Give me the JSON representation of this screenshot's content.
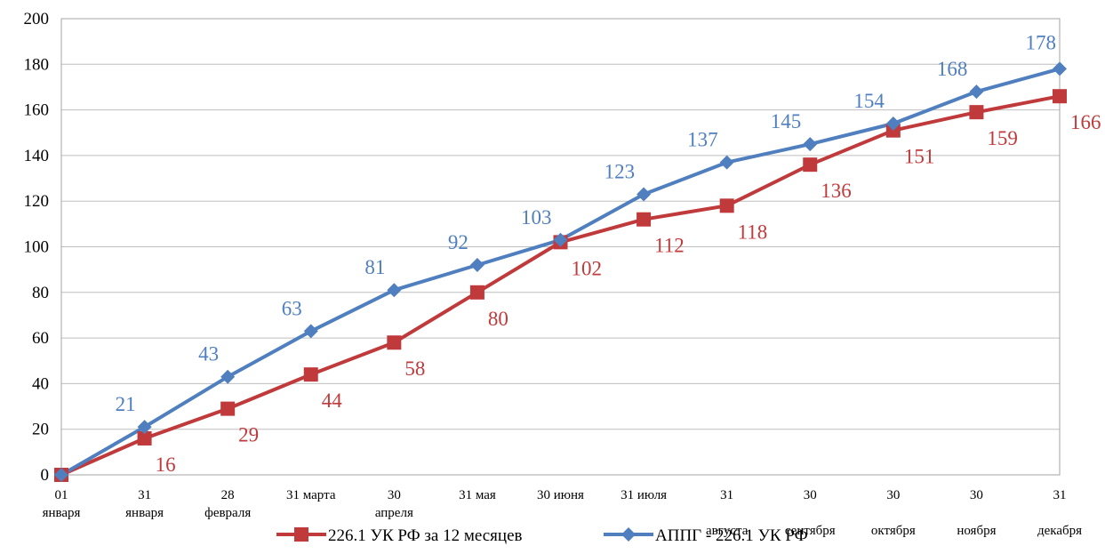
{
  "chart_data": {
    "type": "line",
    "categories": [
      [
        "01",
        "января"
      ],
      [
        "31",
        "января"
      ],
      [
        "28",
        "февраля"
      ],
      [
        "31 марта"
      ],
      [
        "30",
        "апреля"
      ],
      [
        "31 мая"
      ],
      [
        "30 июня"
      ],
      [
        "31 июля"
      ],
      [
        "31",
        "",
        "августа"
      ],
      [
        "30",
        "",
        "сентября"
      ],
      [
        "30",
        "",
        "октября"
      ],
      [
        "30",
        "",
        "ноября"
      ],
      [
        "31",
        "",
        "декабря"
      ]
    ],
    "series": [
      {
        "name": "226.1 УК РФ за 12 месяцев",
        "color": "#c0393b",
        "marker": "square",
        "values": [
          0,
          16,
          29,
          44,
          58,
          80,
          102,
          112,
          118,
          136,
          151,
          159,
          166
        ]
      },
      {
        "name": "АППГ - 226.1  УК РФ",
        "color": "#4f7fbf",
        "marker": "diamond",
        "values": [
          0,
          21,
          43,
          63,
          81,
          92,
          103,
          123,
          137,
          145,
          154,
          168,
          178
        ]
      }
    ],
    "data_labels": {
      "series_0": [
        "",
        "16",
        "29",
        "44",
        "58",
        "80",
        "102",
        "112",
        "118",
        "136",
        "151",
        "159",
        "166"
      ],
      "series_1": [
        "",
        "21",
        "43",
        "63",
        "81",
        "92",
        "103",
        "123",
        "137",
        "145",
        "154",
        "168",
        "178"
      ]
    },
    "y_ticks": [
      "0",
      "20",
      "40",
      "60",
      "80",
      "100",
      "120",
      "140",
      "160",
      "180",
      "200"
    ],
    "ylim": [
      0,
      200
    ],
    "grid": true,
    "legend": "bottom",
    "title": "",
    "xlabel": "",
    "ylabel": ""
  }
}
